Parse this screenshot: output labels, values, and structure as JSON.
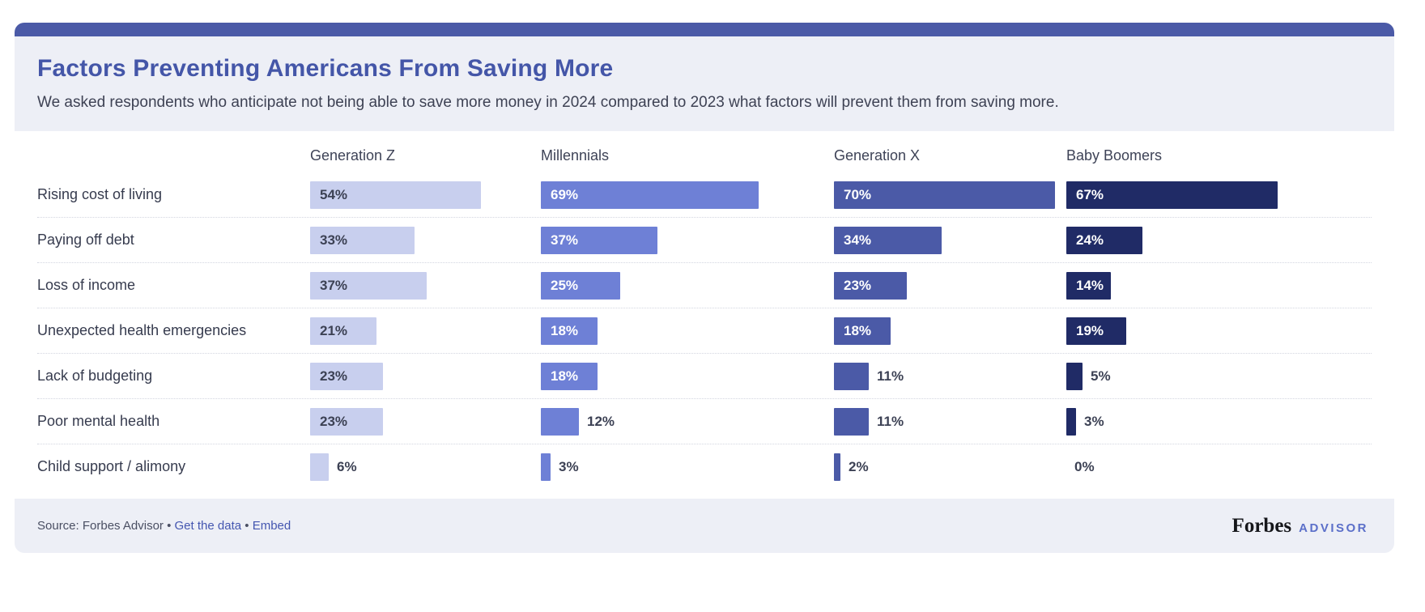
{
  "header": {
    "title": "Factors Preventing Americans From Saving More",
    "subtitle": "We asked respondents who anticipate not being able to save more money in 2024 compared to 2023 what factors will prevent them from saving more."
  },
  "chart_data": {
    "type": "bar",
    "orientation": "horizontal",
    "unit": "%",
    "value_label_inside_threshold": 14,
    "categories": [
      "Rising cost of living",
      "Paying off debt",
      "Loss of income",
      "Unexpected health emergencies",
      "Lack of budgeting",
      "Poor mental health",
      "Child support / alimony"
    ],
    "series": [
      {
        "name": "Generation Z",
        "color": "#c8cfee",
        "label_color_inside": "#3c4154",
        "values": [
          54,
          33,
          37,
          21,
          23,
          23,
          6
        ]
      },
      {
        "name": "Millennials",
        "color": "#6e80d6",
        "label_color_inside": "#ffffff",
        "values": [
          69,
          37,
          25,
          18,
          18,
          12,
          3
        ]
      },
      {
        "name": "Generation X",
        "color": "#4b5aa7",
        "label_color_inside": "#ffffff",
        "values": [
          70,
          34,
          23,
          18,
          11,
          11,
          2
        ]
      },
      {
        "name": "Baby Boomers",
        "color": "#202b66",
        "label_color_inside": "#ffffff",
        "values": [
          67,
          24,
          14,
          19,
          5,
          3,
          0
        ]
      }
    ],
    "legend_position": "column-headers-top",
    "grid": "dotted-row-separators"
  },
  "footer": {
    "source_prefix": "Source: Forbes Advisor",
    "separator": "•",
    "links": [
      {
        "label": "Get the data"
      },
      {
        "label": "Embed"
      }
    ],
    "brand": {
      "forbes": "Forbes",
      "advisor": "ADVISOR"
    }
  },
  "colors": {
    "accent_bar": "#4b5aa7",
    "header_footer_bg": "#edeff6",
    "title": "#4456a8",
    "link": "#4456b0",
    "advisor_wordmark": "#5b6fc9"
  }
}
